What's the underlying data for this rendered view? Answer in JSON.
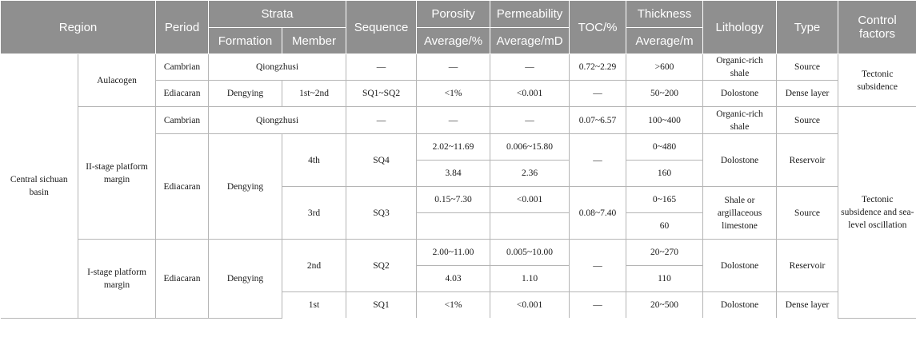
{
  "header": {
    "region": "Region",
    "period": "Period",
    "strata": "Strata",
    "formation": "Formation",
    "member": "Member",
    "sequence": "Sequence",
    "porosity": "Porosity",
    "porosity_unit": "Average/%",
    "permeability": "Permeability",
    "permeability_unit": "Average/mD",
    "toc": "TOC/%",
    "thickness": "Thickness",
    "thickness_unit": "Average/m",
    "lithology": "Lithology",
    "type": "Type",
    "control": "Control factors"
  },
  "basin": "Central sichuan basin",
  "aulacogen": {
    "label": "Aulacogen",
    "control": "Tectonic subsidence",
    "rows": [
      {
        "period": "Cambrian",
        "formation_member": "Qiongzhusi",
        "sequence": "—",
        "porosity": "—",
        "permeability": "—",
        "toc": "0.72~2.29",
        "thickness": ">600",
        "lithology": "Organic-rich shale",
        "type": "Source"
      },
      {
        "period": "Ediacaran",
        "formation": "Dengying",
        "member": "1st~2nd",
        "sequence": "SQ1~SQ2",
        "porosity": "<1%",
        "permeability": "<0.001",
        "toc": "—",
        "thickness": "50~200",
        "lithology": "Dolostone",
        "type": "Dense layer"
      }
    ]
  },
  "platform2": {
    "label": "II-stage platform margin",
    "cambrian": {
      "period": "Cambrian",
      "formation_member": "Qiongzhusi",
      "sequence": "—",
      "porosity": "—",
      "permeability": "—",
      "toc": "0.07~6.57",
      "thickness": "100~400",
      "lithology": "Organic-rich shale",
      "type": "Source"
    },
    "ediacaran_period": "Ediacaran",
    "formation": "Dengying",
    "m4": {
      "member": "4th",
      "sequence": "SQ4",
      "porosity_range": "2.02~11.69",
      "porosity_avg": "3.84",
      "permeability_range": "0.006~15.80",
      "permeability_avg": "2.36",
      "toc": "—",
      "thickness_range": "0~480",
      "thickness_avg": "160",
      "lithology": "Dolostone",
      "type": "Reservoir"
    },
    "m3": {
      "member": "3rd",
      "sequence": "SQ3",
      "porosity_range": "0.15~7.30",
      "porosity_avg": "",
      "permeability_range": "<0.001",
      "permeability_avg": "",
      "toc": "0.08~7.40",
      "thickness_range": "0~165",
      "thickness_avg": "60",
      "lithology": "Shale or argillaceous limestone",
      "type": "Source"
    }
  },
  "platform1": {
    "label": "I-stage platform margin",
    "period": "Ediacaran",
    "formation": "Dengying",
    "m2": {
      "member": "2nd",
      "sequence": "SQ2",
      "porosity_range": "2.00~11.00",
      "porosity_avg": "4.03",
      "permeability_range": "0.005~10.00",
      "permeability_avg": "1.10",
      "toc": "—",
      "thickness_range": "20~270",
      "thickness_avg": "110",
      "lithology": "Dolostone",
      "type": "Reservoir"
    },
    "m1": {
      "member": "1st",
      "sequence": "SQ1",
      "porosity": "<1%",
      "permeability": "<0.001",
      "toc": "—",
      "thickness": "20~500",
      "lithology": "Dolostone",
      "type": "Dense layer"
    }
  },
  "platform_control": "Tectonic subsidence and sea-level oscillation"
}
